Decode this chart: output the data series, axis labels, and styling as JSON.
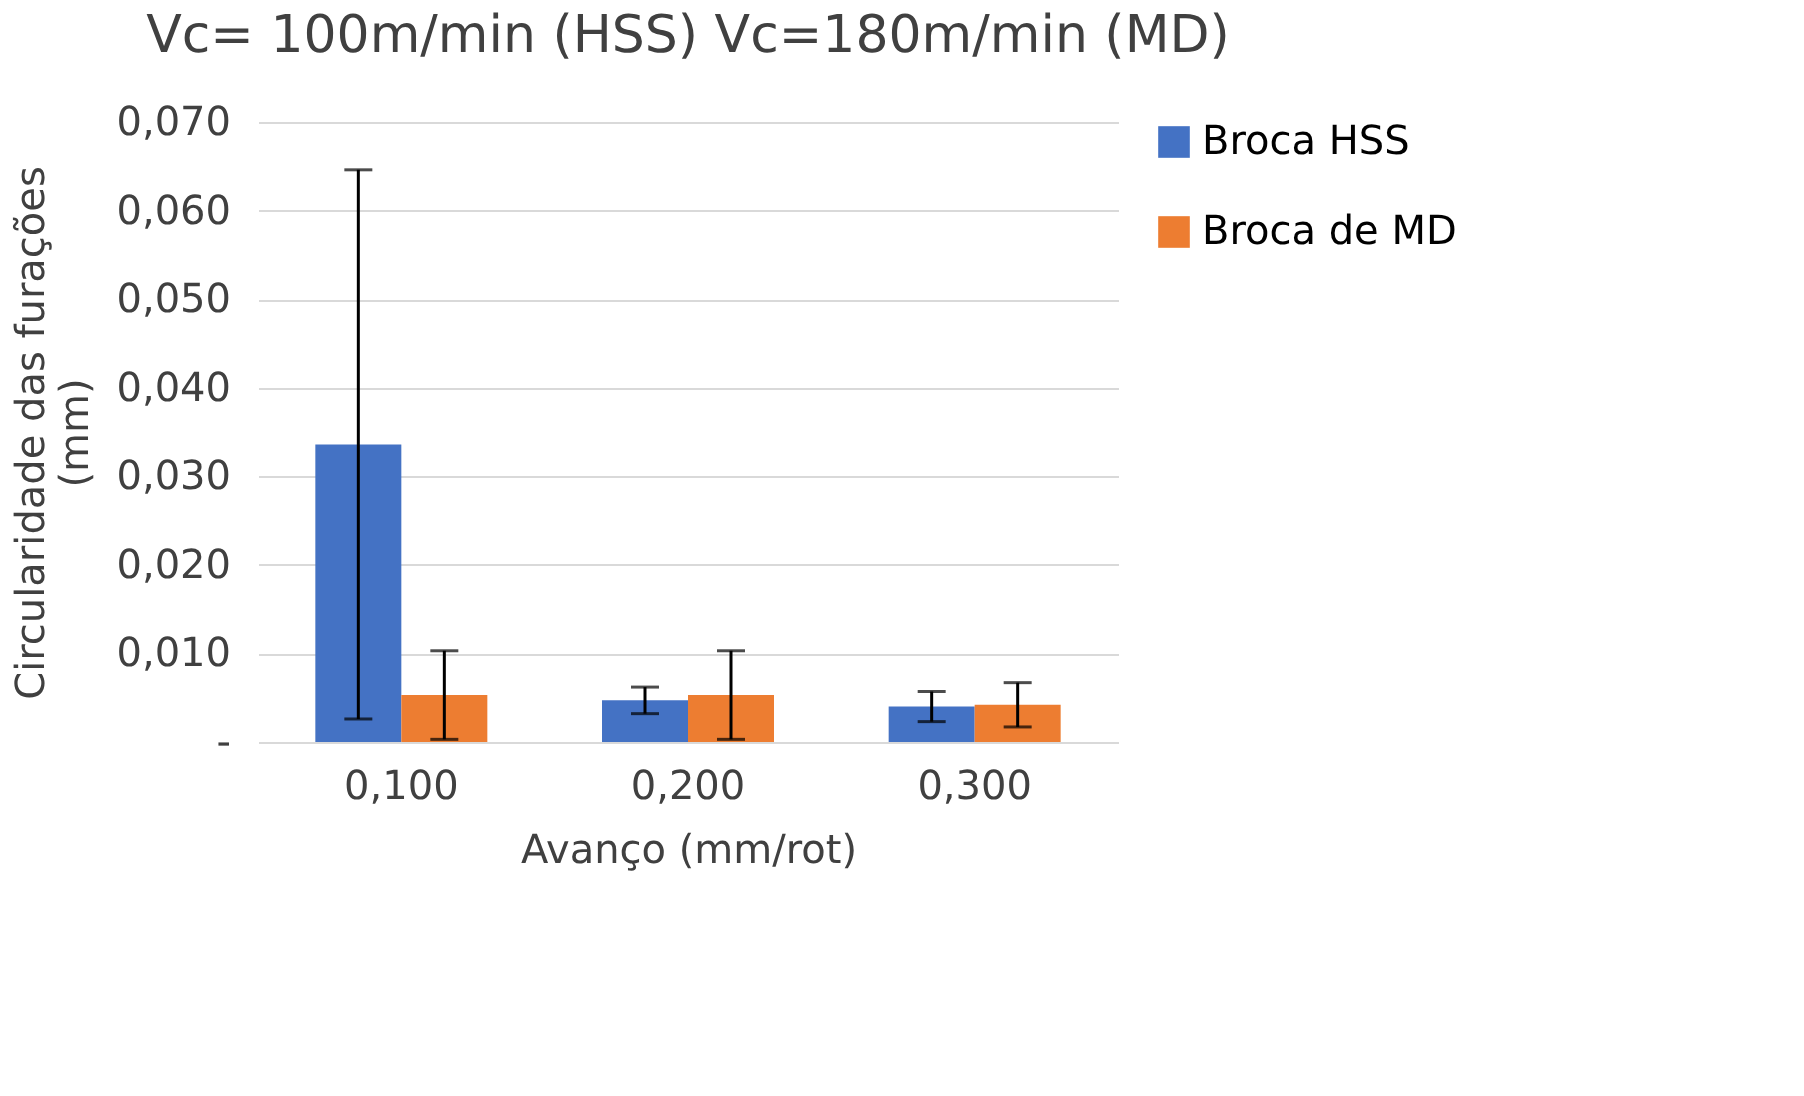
{
  "chart_data": {
    "type": "bar",
    "title": "Vc= 100m/min (HSS) Vc=180m/min (MD)",
    "xlabel": "Avanço (mm/rot)",
    "ylabel": "Circularidade  das furações (mm)",
    "categories": [
      "0,100",
      "0,200",
      "0,300"
    ],
    "series": [
      {
        "name": "Broca HSS",
        "color": "#4472c4",
        "values": [
          0.0336,
          0.0047,
          0.004
        ],
        "errors": [
          0.031,
          0.0015,
          0.0017
        ]
      },
      {
        "name": "Broca de MD",
        "color": "#ed7d31",
        "values": [
          0.0053,
          0.0053,
          0.0042
        ],
        "errors": [
          0.005,
          0.005,
          0.0025
        ]
      }
    ],
    "ylim": [
      0,
      0.07
    ],
    "yticks": [
      {
        "value": 0,
        "label": "-"
      },
      {
        "value": 0.01,
        "label": "0,010"
      },
      {
        "value": 0.02,
        "label": "0,020"
      },
      {
        "value": 0.03,
        "label": "0,030"
      },
      {
        "value": 0.04,
        "label": "0,040"
      },
      {
        "value": 0.05,
        "label": "0,050"
      },
      {
        "value": 0.06,
        "label": "0,060"
      },
      {
        "value": 0.07,
        "label": "0,070"
      }
    ],
    "grid": "y",
    "legend": "right"
  }
}
